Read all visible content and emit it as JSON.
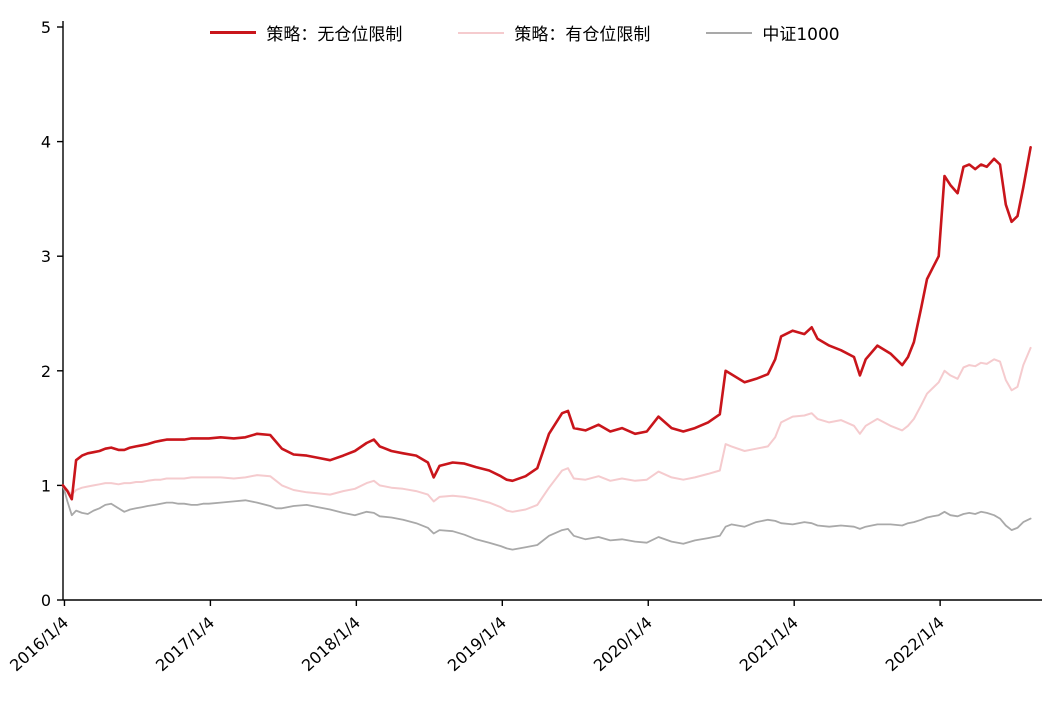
{
  "chart_data": {
    "type": "line",
    "title": "",
    "grid": false,
    "legend_position": "top-center",
    "xlabel": "",
    "ylabel": "",
    "ylim": [
      0,
      5
    ],
    "yticks": [
      0,
      1,
      2,
      3,
      4,
      5
    ],
    "x_domain": [
      2016.0,
      2022.66
    ],
    "xticks": [
      {
        "v": 2016.01,
        "label": "2016/1/4"
      },
      {
        "v": 2017.01,
        "label": "2017/1/4"
      },
      {
        "v": 2018.01,
        "label": "2018/1/4"
      },
      {
        "v": 2019.01,
        "label": "2019/1/4"
      },
      {
        "v": 2020.01,
        "label": "2020/1/4"
      },
      {
        "v": 2021.01,
        "label": "2021/1/4"
      },
      {
        "v": 2022.01,
        "label": "2022/1/4"
      }
    ],
    "x": [
      2016.0,
      2016.03,
      2016.06,
      2016.09,
      2016.13,
      2016.17,
      2016.21,
      2016.25,
      2016.29,
      2016.33,
      2016.38,
      2016.42,
      2016.46,
      2016.5,
      2016.54,
      2016.58,
      2016.63,
      2016.67,
      2016.71,
      2016.75,
      2016.79,
      2016.83,
      2016.88,
      2016.92,
      2016.96,
      2017.0,
      2017.08,
      2017.17,
      2017.25,
      2017.33,
      2017.42,
      2017.46,
      2017.5,
      2017.58,
      2017.67,
      2017.75,
      2017.83,
      2017.92,
      2018.0,
      2018.08,
      2018.13,
      2018.17,
      2018.25,
      2018.33,
      2018.42,
      2018.5,
      2018.54,
      2018.58,
      2018.67,
      2018.75,
      2018.83,
      2018.92,
      2019.0,
      2019.04,
      2019.08,
      2019.17,
      2019.25,
      2019.33,
      2019.42,
      2019.46,
      2019.5,
      2019.58,
      2019.67,
      2019.75,
      2019.83,
      2019.92,
      2020.0,
      2020.08,
      2020.17,
      2020.25,
      2020.33,
      2020.42,
      2020.5,
      2020.54,
      2020.58,
      2020.67,
      2020.75,
      2020.83,
      2020.88,
      2020.92,
      2021.0,
      2021.08,
      2021.13,
      2021.17,
      2021.25,
      2021.33,
      2021.42,
      2021.46,
      2021.5,
      2021.58,
      2021.67,
      2021.75,
      2021.79,
      2021.83,
      2021.88,
      2021.92,
      2021.96,
      2022.0,
      2022.04,
      2022.08,
      2022.13,
      2022.17,
      2022.21,
      2022.25,
      2022.29,
      2022.33,
      2022.38,
      2022.42,
      2022.46,
      2022.5,
      2022.54,
      2022.58,
      2022.63
    ],
    "series": [
      {
        "name": "策略：无仓位限制",
        "color": "#c9151b",
        "width": 2.6,
        "values": [
          1.0,
          0.95,
          0.88,
          1.22,
          1.26,
          1.28,
          1.29,
          1.3,
          1.32,
          1.33,
          1.31,
          1.31,
          1.33,
          1.34,
          1.35,
          1.36,
          1.38,
          1.39,
          1.4,
          1.4,
          1.4,
          1.4,
          1.41,
          1.41,
          1.41,
          1.41,
          1.42,
          1.41,
          1.42,
          1.45,
          1.44,
          1.38,
          1.32,
          1.27,
          1.26,
          1.24,
          1.22,
          1.26,
          1.3,
          1.37,
          1.4,
          1.34,
          1.3,
          1.28,
          1.26,
          1.2,
          1.07,
          1.17,
          1.2,
          1.19,
          1.16,
          1.13,
          1.08,
          1.05,
          1.04,
          1.08,
          1.15,
          1.45,
          1.63,
          1.65,
          1.5,
          1.48,
          1.53,
          1.47,
          1.5,
          1.45,
          1.47,
          1.6,
          1.5,
          1.47,
          1.5,
          1.55,
          1.62,
          2.0,
          1.97,
          1.9,
          1.93,
          1.97,
          2.1,
          2.3,
          2.35,
          2.32,
          2.38,
          2.28,
          2.22,
          2.18,
          2.12,
          1.96,
          2.1,
          2.22,
          2.15,
          2.05,
          2.12,
          2.25,
          2.55,
          2.8,
          2.9,
          3.0,
          3.7,
          3.62,
          3.55,
          3.78,
          3.8,
          3.76,
          3.8,
          3.78,
          3.85,
          3.8,
          3.45,
          3.3,
          3.35,
          3.6,
          3.95
        ]
      },
      {
        "name": "策略：有仓位限制",
        "color": "#f5cbce",
        "width": 2.0,
        "values": [
          1.0,
          0.96,
          0.92,
          0.96,
          0.98,
          0.99,
          1.0,
          1.01,
          1.02,
          1.02,
          1.01,
          1.02,
          1.02,
          1.03,
          1.03,
          1.04,
          1.05,
          1.05,
          1.06,
          1.06,
          1.06,
          1.06,
          1.07,
          1.07,
          1.07,
          1.07,
          1.07,
          1.06,
          1.07,
          1.09,
          1.08,
          1.04,
          1.0,
          0.96,
          0.94,
          0.93,
          0.92,
          0.95,
          0.97,
          1.02,
          1.04,
          1.0,
          0.98,
          0.97,
          0.95,
          0.92,
          0.86,
          0.9,
          0.91,
          0.9,
          0.88,
          0.85,
          0.81,
          0.78,
          0.77,
          0.79,
          0.83,
          0.98,
          1.13,
          1.15,
          1.06,
          1.05,
          1.08,
          1.04,
          1.06,
          1.04,
          1.05,
          1.12,
          1.07,
          1.05,
          1.07,
          1.1,
          1.13,
          1.36,
          1.34,
          1.3,
          1.32,
          1.34,
          1.42,
          1.55,
          1.6,
          1.61,
          1.63,
          1.58,
          1.55,
          1.57,
          1.52,
          1.45,
          1.52,
          1.58,
          1.52,
          1.48,
          1.52,
          1.58,
          1.7,
          1.8,
          1.85,
          1.9,
          2.0,
          1.96,
          1.93,
          2.03,
          2.05,
          2.04,
          2.07,
          2.06,
          2.1,
          2.08,
          1.92,
          1.83,
          1.86,
          2.05,
          2.2
        ]
      },
      {
        "name": "中证1000",
        "color": "#a9a9a9",
        "width": 1.8,
        "values": [
          1.0,
          0.86,
          0.74,
          0.78,
          0.76,
          0.75,
          0.78,
          0.8,
          0.83,
          0.84,
          0.8,
          0.77,
          0.79,
          0.8,
          0.81,
          0.82,
          0.83,
          0.84,
          0.85,
          0.85,
          0.84,
          0.84,
          0.83,
          0.83,
          0.84,
          0.84,
          0.85,
          0.86,
          0.87,
          0.85,
          0.82,
          0.8,
          0.8,
          0.82,
          0.83,
          0.81,
          0.79,
          0.76,
          0.74,
          0.77,
          0.76,
          0.73,
          0.72,
          0.7,
          0.67,
          0.63,
          0.58,
          0.61,
          0.6,
          0.57,
          0.53,
          0.5,
          0.47,
          0.45,
          0.44,
          0.46,
          0.48,
          0.56,
          0.61,
          0.62,
          0.56,
          0.53,
          0.55,
          0.52,
          0.53,
          0.51,
          0.5,
          0.55,
          0.51,
          0.49,
          0.52,
          0.54,
          0.56,
          0.64,
          0.66,
          0.64,
          0.68,
          0.7,
          0.69,
          0.67,
          0.66,
          0.68,
          0.67,
          0.65,
          0.64,
          0.65,
          0.64,
          0.62,
          0.64,
          0.66,
          0.66,
          0.65,
          0.67,
          0.68,
          0.7,
          0.72,
          0.73,
          0.74,
          0.77,
          0.74,
          0.73,
          0.75,
          0.76,
          0.75,
          0.77,
          0.76,
          0.74,
          0.71,
          0.65,
          0.61,
          0.63,
          0.68,
          0.71
        ]
      }
    ]
  },
  "axis": {
    "color": "#000000",
    "font_size": 16
  }
}
